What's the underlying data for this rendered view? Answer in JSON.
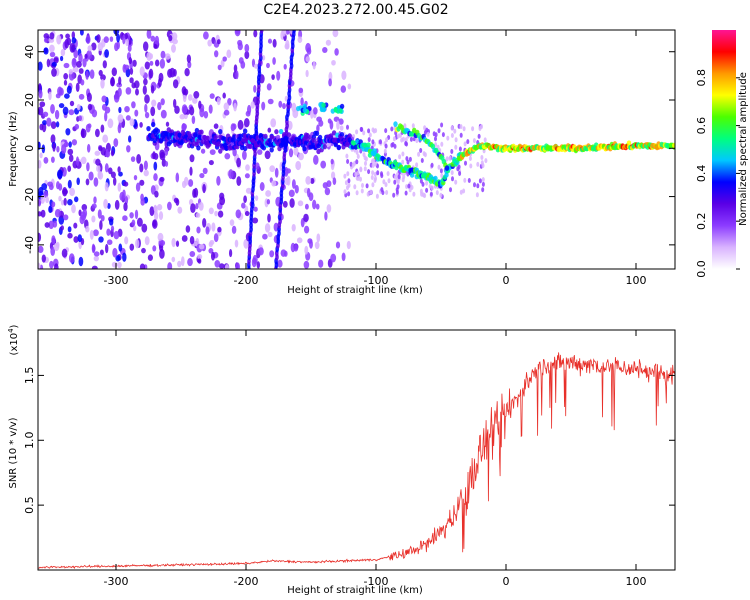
{
  "title": "C2E4.2023.272.00.45.G02",
  "chart_data": [
    {
      "type": "heatmap",
      "xlabel": "Height of straight line (km)",
      "ylabel": "Frequency (Hz)",
      "xlim": [
        -360,
        130
      ],
      "ylim": [
        -50,
        49
      ],
      "xticks": [
        -300,
        -200,
        -100,
        0,
        100
      ],
      "xtick_labels": [
        "-300",
        "-200",
        "-100",
        "0",
        "100"
      ],
      "yticks": [
        -40,
        -20,
        0,
        20,
        40
      ],
      "ytick_labels": [
        "-40",
        "-20",
        "0",
        "20",
        "40"
      ],
      "colorbar": {
        "label": "Normalized spectral amplitude",
        "range": [
          0,
          1
        ],
        "ticks": [
          0.0,
          0.2,
          0.4,
          0.6,
          0.8
        ],
        "tick_labels": [
          "0.0",
          "0.2",
          "0.4",
          "0.6",
          "0.8"
        ],
        "colormap": [
          "#ffffff",
          "#d9b3ff",
          "#8c3cff",
          "#5a00e6",
          "#0000ff",
          "#00c8ff",
          "#00ff7f",
          "#4cff00",
          "#ffff00",
          "#ff9900",
          "#ff0000",
          "#ff1493"
        ]
      },
      "features": {
        "ridge": [
          {
            "x": -275,
            "f": 6
          },
          {
            "x": -250,
            "f": 4
          },
          {
            "x": -225,
            "f": 3
          },
          {
            "x": -200,
            "f": 3
          },
          {
            "x": -175,
            "f": 3
          },
          {
            "x": -150,
            "f": 3
          },
          {
            "x": -125,
            "f": 3
          },
          {
            "x": -110,
            "f": 1
          },
          {
            "x": -100,
            "f": -3
          },
          {
            "x": -90,
            "f": -6
          },
          {
            "x": -80,
            "f": -8
          },
          {
            "x": -70,
            "f": -10
          },
          {
            "x": -60,
            "f": -12
          },
          {
            "x": -50,
            "f": -15
          },
          {
            "x": -45,
            "f": -9
          },
          {
            "x": -35,
            "f": -3
          },
          {
            "x": -20,
            "f": 1
          },
          {
            "x": 0,
            "f": 0
          },
          {
            "x": 50,
            "f": 0
          },
          {
            "x": 100,
            "f": 1
          },
          {
            "x": 130,
            "f": 1
          }
        ],
        "upper_branch": [
          {
            "x": -85,
            "f": 9
          },
          {
            "x": -70,
            "f": 6
          },
          {
            "x": -60,
            "f": 3
          },
          {
            "x": -50,
            "f": -3
          },
          {
            "x": -45,
            "f": -9
          }
        ],
        "patch": [
          {
            "x": -155,
            "f": 16
          },
          {
            "x": -140,
            "f": 17
          },
          {
            "x": -128,
            "f": 16
          }
        ],
        "streaks": [
          {
            "x_bottom": -198,
            "x_top": -188
          },
          {
            "x_bottom": -177,
            "x_top": -163
          }
        ],
        "scatter_extent_x": [
          -360,
          -120
        ]
      }
    },
    {
      "type": "line",
      "xlabel": "Height of straight line (km)",
      "ylabel": "SNR (10 * v/v)",
      "multiplier": "(x10",
      "multiplier_exp": "4",
      "multiplier_close": ")",
      "xlim": [
        -360,
        130
      ],
      "ylim": [
        0,
        1.85
      ],
      "xticks": [
        -300,
        -200,
        -100,
        0,
        100
      ],
      "xtick_labels": [
        "-300",
        "-200",
        "-100",
        "0",
        "100"
      ],
      "yticks": [
        0.5,
        1.0,
        1.5
      ],
      "ytick_labels": [
        "0.5",
        "1.0",
        "1.5"
      ],
      "series": [
        {
          "color": "#e8302a",
          "trend": [
            {
              "x": -360,
              "y": 0.02
            },
            {
              "x": -300,
              "y": 0.03
            },
            {
              "x": -250,
              "y": 0.04
            },
            {
              "x": -200,
              "y": 0.05
            },
            {
              "x": -180,
              "y": 0.07
            },
            {
              "x": -150,
              "y": 0.06
            },
            {
              "x": -100,
              "y": 0.08
            },
            {
              "x": -80,
              "y": 0.12
            },
            {
              "x": -60,
              "y": 0.2
            },
            {
              "x": -45,
              "y": 0.35
            },
            {
              "x": -30,
              "y": 0.6
            },
            {
              "x": -20,
              "y": 0.9
            },
            {
              "x": -10,
              "y": 1.05
            },
            {
              "x": 0,
              "y": 1.2
            },
            {
              "x": 10,
              "y": 1.35
            },
            {
              "x": 20,
              "y": 1.5
            },
            {
              "x": 30,
              "y": 1.58
            },
            {
              "x": 50,
              "y": 1.6
            },
            {
              "x": 80,
              "y": 1.57
            },
            {
              "x": 100,
              "y": 1.55
            },
            {
              "x": 130,
              "y": 1.5
            }
          ]
        }
      ]
    }
  ]
}
